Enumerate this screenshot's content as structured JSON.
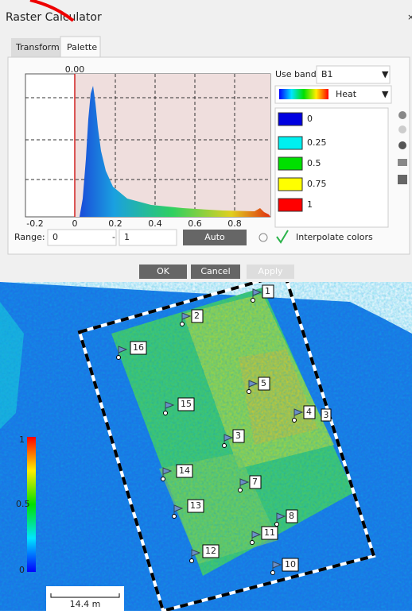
{
  "window": {
    "title": "Raster Calculator"
  },
  "tabs": [
    "Transform",
    "Palette"
  ],
  "histogram": {
    "marker_label": "0.00",
    "x_ticks": [
      "-0.2",
      "0",
      "0.2",
      "0.4",
      "0.6",
      "0.8"
    ]
  },
  "band": {
    "label": "Use band:",
    "value": "B1"
  },
  "ramp": "Heat",
  "palette": [
    "0",
    "0.25",
    "0.5",
    "0.75",
    "1"
  ],
  "range": {
    "label": "Range:",
    "min": "0",
    "separator": "-",
    "max": "1",
    "button": "Auto"
  },
  "interpolate": "Interpolate colors",
  "buttons": [
    "OK",
    "Cancel",
    "Apply"
  ],
  "map": {
    "markers": [
      "1",
      "2",
      "16",
      "5",
      "15",
      "4",
      "3",
      "14",
      "7",
      "13",
      "8",
      "11",
      "12",
      "10"
    ],
    "extra_label": "3",
    "legend": [
      "1",
      "0.5",
      "0"
    ],
    "scale": "14.4 m"
  }
}
